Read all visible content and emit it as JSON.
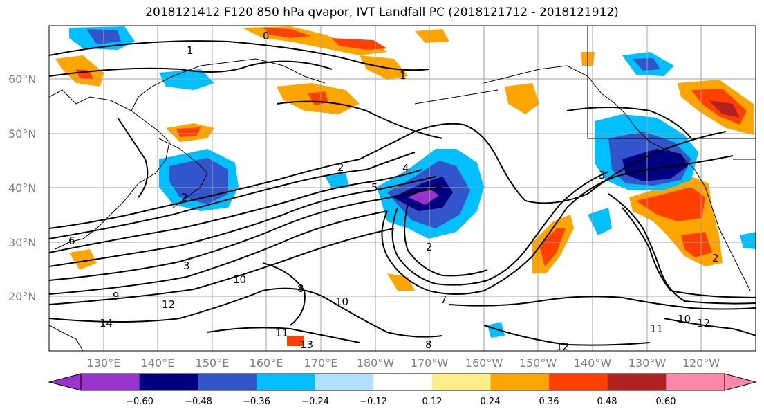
{
  "title": "2018121412 F120 850 hPa qvapor, IVT Landfall PC (2018121712 - 2018121912)",
  "lat_labels": [
    "60°N",
    "50°N",
    "40°N",
    "30°N",
    "20°N"
  ],
  "lon_labels": [
    "130°E",
    "140°E",
    "150°E",
    "160°E",
    "170°E",
    "180°W",
    "170°W",
    "160°W",
    "150°W",
    "140°W",
    "130°W",
    "120°W"
  ],
  "colorbar": {
    "colors": [
      "#9933cc",
      "#000080",
      "#3355cc",
      "#00bfff",
      "#b0e2ff",
      "#ffffff",
      "#ffee88",
      "#ffa500",
      "#ff4000",
      "#b22222",
      "#ff88aa"
    ],
    "ticks": [
      "−0.60",
      "−0.48",
      "−0.36",
      "−0.24",
      "−0.12",
      "0.12",
      "0.24",
      "0.36",
      "0.48",
      "0.60"
    ]
  },
  "contour_labels": [
    "0",
    "1",
    "1",
    "2",
    "2",
    "3",
    "3",
    "4",
    "5",
    "6",
    "2",
    "2",
    "8",
    "10",
    "10",
    "11",
    "11",
    "12",
    "12",
    "13",
    "14",
    "8",
    "10",
    "12",
    "9",
    "7"
  ]
}
